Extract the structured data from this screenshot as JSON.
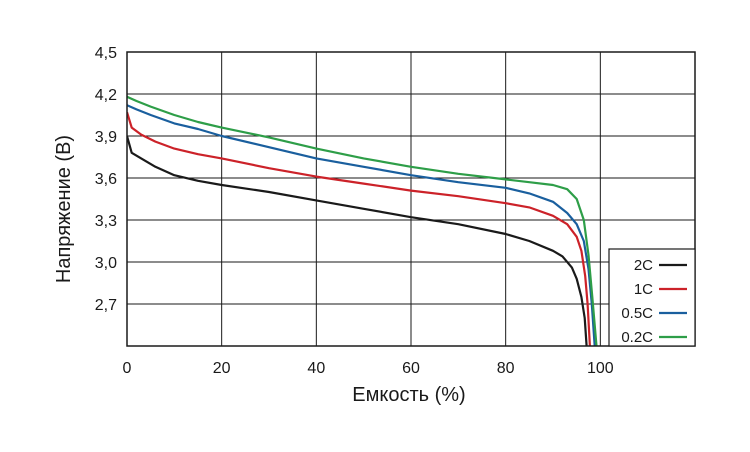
{
  "chart_data": {
    "type": "line",
    "title": "",
    "xlabel": "Емкость (%)",
    "ylabel": "Напряжение (В)",
    "xlim": [
      0,
      120
    ],
    "ylim": [
      2.4,
      4.5
    ],
    "grid": true,
    "x_ticks": [
      0,
      20,
      40,
      60,
      80,
      100
    ],
    "x_tick_labels": [
      "0",
      "20",
      "40",
      "60",
      "80",
      "100"
    ],
    "y_ticks": [
      2.7,
      3.0,
      3.3,
      3.6,
      3.9,
      4.2,
      4.5
    ],
    "y_tick_labels": [
      "2,7",
      "3,0",
      "3,3",
      "3,6",
      "3,9",
      "4,2",
      "4,5"
    ],
    "legend_position": "bottom-right",
    "series": [
      {
        "name": "2C",
        "color": "#1a1a1a",
        "points": [
          [
            0,
            3.9
          ],
          [
            1,
            3.78
          ],
          [
            3,
            3.74
          ],
          [
            6,
            3.68
          ],
          [
            10,
            3.62
          ],
          [
            15,
            3.58
          ],
          [
            20,
            3.55
          ],
          [
            30,
            3.5
          ],
          [
            40,
            3.44
          ],
          [
            50,
            3.38
          ],
          [
            60,
            3.32
          ],
          [
            70,
            3.27
          ],
          [
            80,
            3.2
          ],
          [
            85,
            3.15
          ],
          [
            90,
            3.08
          ],
          [
            92,
            3.04
          ],
          [
            94,
            2.96
          ],
          [
            95,
            2.88
          ],
          [
            96,
            2.75
          ],
          [
            96.7,
            2.6
          ],
          [
            97.1,
            2.4
          ]
        ]
      },
      {
        "name": "1C",
        "color": "#cc2229",
        "points": [
          [
            0,
            4.07
          ],
          [
            1,
            3.96
          ],
          [
            3,
            3.91
          ],
          [
            6,
            3.86
          ],
          [
            10,
            3.81
          ],
          [
            15,
            3.77
          ],
          [
            20,
            3.74
          ],
          [
            30,
            3.67
          ],
          [
            40,
            3.61
          ],
          [
            50,
            3.56
          ],
          [
            60,
            3.51
          ],
          [
            70,
            3.47
          ],
          [
            80,
            3.42
          ],
          [
            85,
            3.39
          ],
          [
            90,
            3.33
          ],
          [
            93,
            3.27
          ],
          [
            95,
            3.18
          ],
          [
            96,
            3.08
          ],
          [
            96.8,
            2.9
          ],
          [
            97.3,
            2.7
          ],
          [
            97.8,
            2.4
          ]
        ]
      },
      {
        "name": "0.5C",
        "color": "#1a5f9e",
        "points": [
          [
            0,
            4.12
          ],
          [
            2,
            4.09
          ],
          [
            5,
            4.05
          ],
          [
            10,
            3.99
          ],
          [
            15,
            3.95
          ],
          [
            20,
            3.9
          ],
          [
            30,
            3.82
          ],
          [
            40,
            3.74
          ],
          [
            50,
            3.68
          ],
          [
            60,
            3.62
          ],
          [
            70,
            3.57
          ],
          [
            80,
            3.53
          ],
          [
            85,
            3.49
          ],
          [
            90,
            3.43
          ],
          [
            93,
            3.35
          ],
          [
            95,
            3.27
          ],
          [
            96.5,
            3.15
          ],
          [
            97.5,
            2.95
          ],
          [
            98.2,
            2.7
          ],
          [
            98.8,
            2.4
          ]
        ]
      },
      {
        "name": "0.2C",
        "color": "#2e9e48",
        "points": [
          [
            0,
            4.18
          ],
          [
            2,
            4.15
          ],
          [
            5,
            4.11
          ],
          [
            10,
            4.05
          ],
          [
            15,
            4.0
          ],
          [
            20,
            3.96
          ],
          [
            30,
            3.89
          ],
          [
            40,
            3.81
          ],
          [
            50,
            3.74
          ],
          [
            60,
            3.68
          ],
          [
            70,
            3.63
          ],
          [
            80,
            3.59
          ],
          [
            85,
            3.57
          ],
          [
            90,
            3.55
          ],
          [
            93,
            3.52
          ],
          [
            95,
            3.45
          ],
          [
            96.5,
            3.3
          ],
          [
            97.5,
            3.05
          ],
          [
            98.3,
            2.75
          ],
          [
            99.2,
            2.4
          ]
        ]
      }
    ]
  }
}
